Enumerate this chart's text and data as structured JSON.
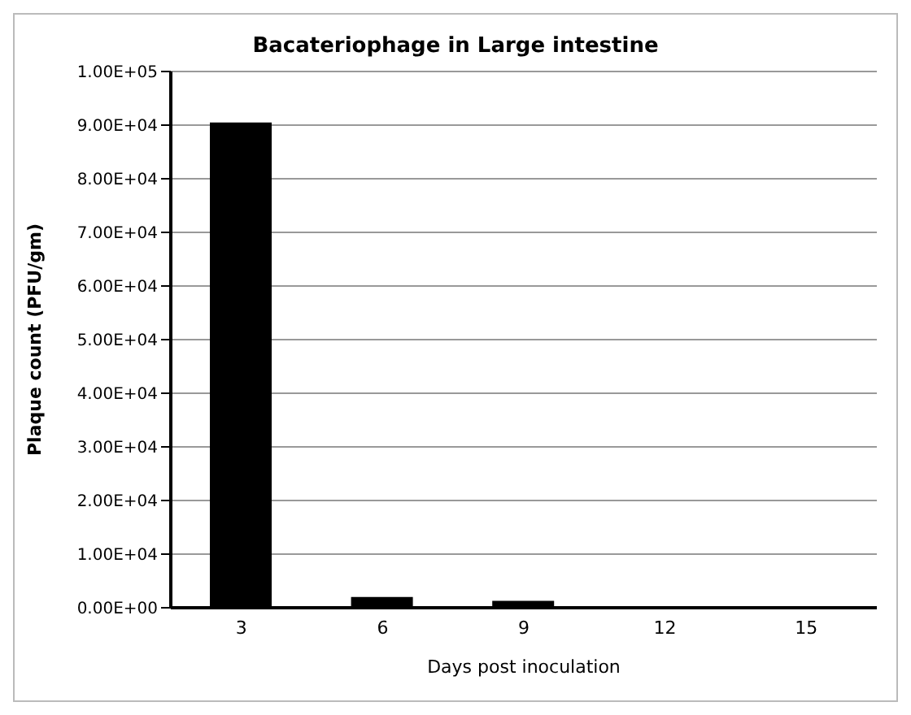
{
  "chart_data": {
    "type": "bar",
    "title": "Bacateriophage in Large intestine",
    "xlabel": "Days post inoculation",
    "ylabel": "Plaque count  (PFU/gm)",
    "categories": [
      "3",
      "6",
      "9",
      "12",
      "15"
    ],
    "values": [
      90500,
      2000,
      1300,
      0,
      0
    ],
    "color": "#000000",
    "ylim": [
      0,
      100000
    ],
    "yticks": [
      {
        "value": 0,
        "label": "0.00E+00"
      },
      {
        "value": 10000,
        "label": "1.00E+04"
      },
      {
        "value": 20000,
        "label": "2.00E+04"
      },
      {
        "value": 30000,
        "label": "3.00E+04"
      },
      {
        "value": 40000,
        "label": "4.00E+04"
      },
      {
        "value": 50000,
        "label": "5.00E+04"
      },
      {
        "value": 60000,
        "label": "6.00E+04"
      },
      {
        "value": 70000,
        "label": "7.00E+04"
      },
      {
        "value": 80000,
        "label": "8.00E+04"
      },
      {
        "value": 90000,
        "label": "9.00E+04"
      },
      {
        "value": 100000,
        "label": "1.00E+05"
      }
    ],
    "grid": "y"
  }
}
